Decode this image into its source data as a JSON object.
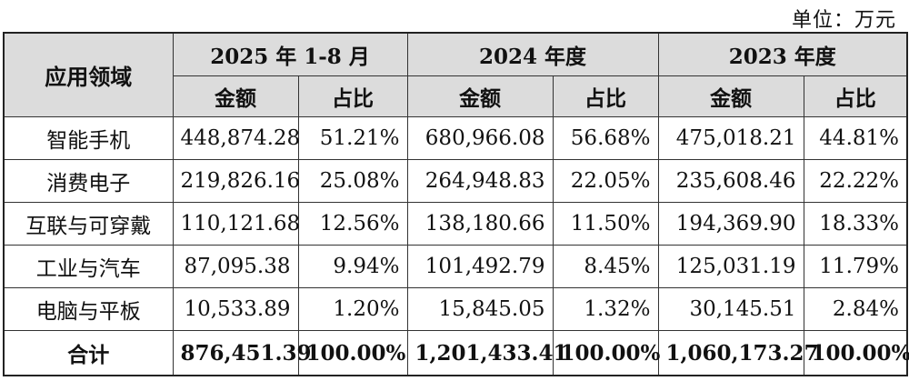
{
  "unit_label": "单位：万元",
  "header": {
    "domain_label": "应用领域",
    "periods": [
      "2025 年 1-8 月",
      "2024 年度",
      "2023 年度"
    ],
    "amount_label": "金额",
    "ratio_label": "占比"
  },
  "rows": [
    {
      "domain": "智能手机",
      "cells": [
        "448,874.28",
        "51.21%",
        "680,966.08",
        "56.68%",
        "475,018.21",
        "44.81%"
      ]
    },
    {
      "domain": "消费电子",
      "cells": [
        "219,826.16",
        "25.08%",
        "264,948.83",
        "22.05%",
        "235,608.46",
        "22.22%"
      ]
    },
    {
      "domain": "互联与可穿戴",
      "cells": [
        "110,121.68",
        "12.56%",
        "138,180.66",
        "11.50%",
        "194,369.90",
        "18.33%"
      ]
    },
    {
      "domain": "工业与汽车",
      "cells": [
        "87,095.38",
        "9.94%",
        "101,492.79",
        "8.45%",
        "125,031.19",
        "11.79%"
      ]
    },
    {
      "domain": "电脑与平板",
      "cells": [
        "10,533.89",
        "1.20%",
        "15,845.05",
        "1.32%",
        "30,145.51",
        "2.84%"
      ]
    }
  ],
  "total": {
    "domain": "合计",
    "cells": [
      "876,451.39",
      "100.00%",
      "1,201,433.41",
      "100.00%",
      "1,060,173.27",
      "100.00%"
    ]
  }
}
